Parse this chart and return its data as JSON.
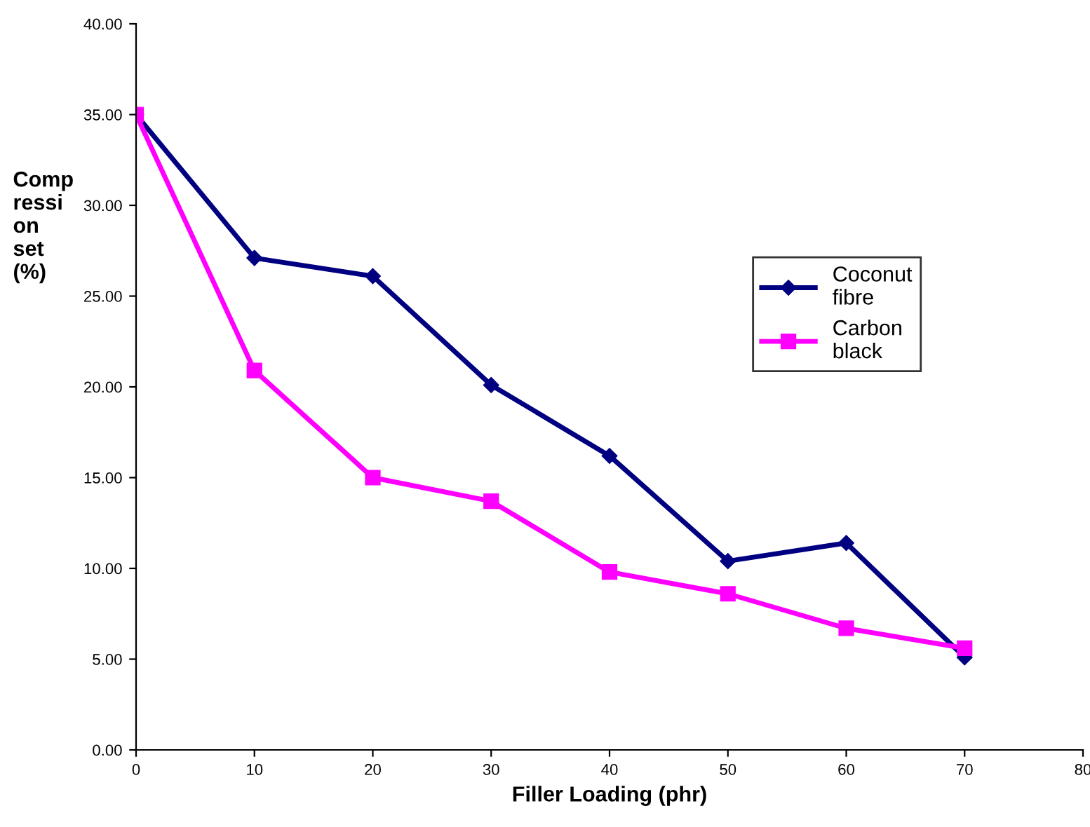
{
  "chart_data": {
    "type": "line",
    "xlabel": "Filler Loading (phr)",
    "ylabel": "Comp\nressi\non\nset\n(%)",
    "x": [
      0,
      10,
      20,
      30,
      40,
      50,
      60,
      70
    ],
    "series": [
      {
        "name": "Coconut\nfibre",
        "color": "#000080",
        "marker": "diamond",
        "values": [
          35.0,
          27.1,
          26.1,
          20.1,
          16.2,
          10.4,
          11.4,
          5.1
        ]
      },
      {
        "name": "Carbon\nblack",
        "color": "#ff00ff",
        "marker": "square",
        "values": [
          35.0,
          20.9,
          15.0,
          13.7,
          9.8,
          8.6,
          6.7,
          5.6
        ]
      }
    ],
    "xlim": [
      0,
      80
    ],
    "xticks": [
      0,
      10,
      20,
      30,
      40,
      50,
      60,
      70,
      80
    ],
    "ylim": [
      0,
      40
    ],
    "yticks": [
      {
        "value": 0,
        "label": "0.00"
      },
      {
        "value": 5,
        "label": "5.00"
      },
      {
        "value": 10,
        "label": "10.00"
      },
      {
        "value": 15,
        "label": "15.00"
      },
      {
        "value": 20,
        "label": "20.00"
      },
      {
        "value": 25,
        "label": "25.00"
      },
      {
        "value": 30,
        "label": "30.00"
      },
      {
        "value": 35,
        "label": "35.00"
      },
      {
        "value": 40,
        "label": "40.00"
      }
    ],
    "grid": false,
    "legend": "right",
    "line_style": "solid"
  }
}
